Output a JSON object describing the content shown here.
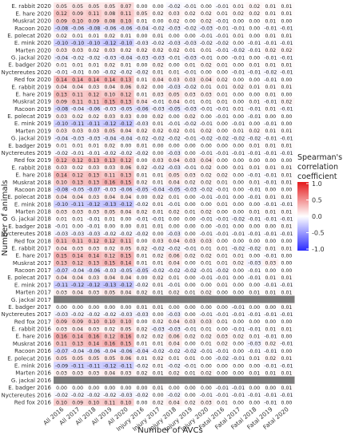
{
  "chart_data": {
    "type": "heatmap",
    "title": "",
    "xlabel": "Number of AVCs",
    "ylabel": "Number of animals",
    "legend": {
      "title": "Spearman's\ncorrelation\ncoefficient",
      "ticks": [
        "1.0",
        "0.5",
        "0.0",
        "-0.5",
        "-1.0"
      ],
      "low_color": "#2b2bff",
      "mid_color": "#ffffff",
      "high_color": "#e41a1c",
      "range": [
        -1,
        1
      ],
      "placement": "right"
    },
    "missing_color": "#7f7f7f",
    "x_categories": [
      "All 2016",
      "All 2017",
      "All 2018",
      "All 2019",
      "All 2020",
      "Injury 2016",
      "Injury 2017",
      "Injury 2018",
      "Injury 2019",
      "Injury 2020",
      "Fatal 2016",
      "Fatal 2017",
      "Fatal 2018",
      "Fatal 2019",
      "Fatal 2020"
    ],
    "y_categories": [
      "E. rabbit 2020",
      "E. hare 2020",
      "Muskrat 2020",
      "Racoon 2020",
      "E. polecat 2020",
      "E. mink 2020",
      "Marten 2020",
      "G. jackal 2020",
      "E. badger 2020",
      "Nyctereutes 2020",
      "Red fox 2020",
      "E. rabbit 2019",
      "E. hare 2019",
      "Muskrat 2019",
      "Racoon 2019",
      "E. polecat 2019",
      "E. mink 2019",
      "Marten 2019",
      "G. jackal 2019",
      "E. badger 2019",
      "Nyctereutes 2019",
      "Red fox 2019",
      "E. rabbit 2018",
      "E. hare 2018",
      "Muskrat 2018",
      "Racoon 2018",
      "E. polecat 2018",
      "E. mink 2018",
      "Marten 2018",
      "G. jackal 2018",
      "E. badger 2018",
      "Nyctereutes 2018",
      "Red fox 2018",
      "E. rabbit 2017",
      "E. hare 2017",
      "Muskrat 2017",
      "Racoon 2017",
      "E. polecat 2017",
      "E. mink 2017",
      "Marten 2017",
      "G. jackal 2017",
      "E. badger 2017",
      "Nyctereutes 2017",
      "Red fox 2017",
      "E. rabbit 2016",
      "E. hare 2016",
      "Muskrat 2016",
      "Racoon 2016",
      "E. polecat 2016",
      "E. mink 2016",
      "Marten 2016",
      "G. jackal 2016",
      "E. badger 2016",
      "Nyctereutes 2016",
      "Red fox 2016"
    ],
    "values": [
      [
        "0.05",
        "0.05",
        "0.05",
        "0.05",
        "0.07",
        "0.00",
        "0.00",
        "-0.02",
        "-0.01",
        "0.00",
        "-0.01",
        "0.01",
        "0.02",
        "0.01",
        "0.01"
      ],
      [
        "0.12",
        "0.09",
        "0.11",
        "0.08",
        "0.11",
        "0.05",
        "0.02",
        "0.03",
        "0.02",
        "0.02",
        "0.01",
        "0.02",
        "0.02",
        "0.01",
        "0.01"
      ],
      [
        "0.09",
        "0.10",
        "0.09",
        "0.08",
        "0.10",
        "0.01",
        "0.00",
        "0.02",
        "0.00",
        "0.02",
        "-0.01",
        "0.00",
        "0.00",
        "0.01",
        "0.00"
      ],
      [
        "-0.08",
        "-0.06",
        "-0.08",
        "-0.06",
        "-0.06",
        "-0.04",
        "-0.02",
        "-0.03",
        "-0.02",
        "-0.03",
        "-0.01",
        "-0.01",
        "0.00",
        "-0.01",
        "-0.01"
      ],
      [
        "0.02",
        "0.01",
        "0.01",
        "0.02",
        "0.01",
        "0.00",
        "0.01",
        "0.00",
        "0.00",
        "-0.01",
        "-0.01",
        "0.01",
        "0.00",
        "0.01",
        "0.01"
      ],
      [
        "-0.10",
        "-0.10",
        "-0.10",
        "-0.12",
        "-0.10",
        "-0.03",
        "-0.02",
        "-0.03",
        "-0.03",
        "-0.02",
        "-0.02",
        "0.00",
        "-0.01",
        "-0.01",
        "-0.01"
      ],
      [
        "0.03",
        "0.03",
        "0.02",
        "0.03",
        "0.02",
        "0.02",
        "0.02",
        "0.02",
        "0.01",
        "0.01",
        "-0.01",
        "-0.02",
        "-0.01",
        "0.02",
        "0.02"
      ],
      [
        "-0.04",
        "-0.02",
        "-0.02",
        "-0.03",
        "-0.04",
        "-0.03",
        "-0.03",
        "-0.01",
        "-0.03",
        "-0.01",
        "0.00",
        "-0.01",
        "0.00",
        "-0.01",
        "-0.01"
      ],
      [
        "0.01",
        "0.01",
        "0.01",
        "0.02",
        "0.01",
        "0.00",
        "0.02",
        "0.00",
        "0.01",
        "0.02",
        "0.01",
        "0.00",
        "0.01",
        "0.01",
        "0.01"
      ],
      [
        "-0.01",
        "-0.01",
        "0.00",
        "-0.02",
        "-0.02",
        "-0.02",
        "0.01",
        "0.01",
        "-0.01",
        "0.00",
        "0.00",
        "-0.01",
        "-0.01",
        "-0.02",
        "-0.01"
      ],
      [
        "0.14",
        "0.14",
        "0.14",
        "0.14",
        "0.13",
        "0.01",
        "0.04",
        "0.03",
        "0.03",
        "0.04",
        "0.02",
        "0.00",
        "0.00",
        "-0.01",
        "0.00"
      ],
      [
        "0.04",
        "0.04",
        "0.03",
        "0.04",
        "0.06",
        "0.02",
        "0.00",
        "-0.03",
        "-0.02",
        "0.01",
        "0.01",
        "0.02",
        "0.01",
        "0.01",
        "0.01"
      ],
      [
        "0.13",
        "0.11",
        "0.12",
        "0.10",
        "0.12",
        "0.01",
        "0.03",
        "0.05",
        "0.03",
        "0.03",
        "0.01",
        "0.00",
        "0.00",
        "0.01",
        "0.00"
      ],
      [
        "0.09",
        "0.11",
        "0.11",
        "0.15",
        "0.13",
        "0.04",
        "-0.01",
        "0.04",
        "0.01",
        "0.01",
        "0.01",
        "0.00",
        "0.01",
        "-0.01",
        "0.02"
      ],
      [
        "-0.08",
        "-0.04",
        "-0.06",
        "-0.03",
        "-0.05",
        "-0.06",
        "-0.03",
        "-0.05",
        "-0.03",
        "-0.01",
        "-0.01",
        "0.01",
        "-0.01",
        "0.01",
        "-0.01"
      ],
      [
        "0.03",
        "0.02",
        "0.02",
        "0.03",
        "0.03",
        "0.00",
        "0.02",
        "0.00",
        "0.02",
        "0.00",
        "-0.01",
        "0.00",
        "-0.01",
        "0.00",
        "0.00"
      ],
      [
        "-0.10",
        "-0.11",
        "-0.11",
        "-0.12",
        "-0.12",
        "-0.03",
        "0.01",
        "-0.01",
        "-0.02",
        "-0.01",
        "0.00",
        "-0.01",
        "0.00",
        "-0.01",
        "0.00"
      ],
      [
        "0.03",
        "0.03",
        "0.03",
        "0.05",
        "0.04",
        "0.02",
        "0.02",
        "0.02",
        "0.01",
        "0.02",
        "0.00",
        "0.01",
        "0.02",
        "0.01",
        "0.01"
      ],
      [
        "-0.04",
        "-0.03",
        "-0.03",
        "-0.04",
        "-0.04",
        "-0.02",
        "-0.02",
        "-0.02",
        "-0.01",
        "-0.02",
        "-0.02",
        "-0.02",
        "-0.02",
        "-0.01",
        "-0.01"
      ],
      [
        "0.01",
        "0.01",
        "0.01",
        "0.02",
        "0.00",
        "0.01",
        "0.00",
        "0.00",
        "0.00",
        "0.00",
        "0.00",
        "0.00",
        "0.01",
        "0.01",
        "0.01"
      ],
      [
        "-0.02",
        "-0.01",
        "-0.01",
        "-0.02",
        "-0.02",
        "-0.02",
        "0.00",
        "-0.03",
        "0.00",
        "-0.01",
        "-0.01",
        "-0.01",
        "-0.01",
        "-0.01",
        "-0.01"
      ],
      [
        "0.12",
        "0.12",
        "0.13",
        "0.13",
        "0.12",
        "0.00",
        "0.03",
        "0.04",
        "0.03",
        "0.04",
        "0.00",
        "0.00",
        "0.00",
        "0.00",
        "0.00"
      ],
      [
        "0.03",
        "0.02",
        "0.03",
        "0.03",
        "0.06",
        "0.02",
        "-0.02",
        "-0.03",
        "-0.01",
        "0.02",
        "0.00",
        "0.01",
        "0.01",
        "0.01",
        "0.01"
      ],
      [
        "0.14",
        "0.12",
        "0.13",
        "0.11",
        "0.13",
        "0.01",
        "0.01",
        "0.05",
        "0.03",
        "0.02",
        "0.02",
        "0.00",
        "-0.01",
        "-0.01",
        "0.01"
      ],
      [
        "0.10",
        "0.13",
        "0.13",
        "0.16",
        "0.15",
        "0.02",
        "0.01",
        "0.04",
        "0.02",
        "0.02",
        "0.01",
        "0.00",
        "0.01",
        "-0.01",
        "0.01"
      ],
      [
        "-0.08",
        "-0.05",
        "-0.07",
        "-0.03",
        "-0.06",
        "-0.05",
        "-0.04",
        "-0.05",
        "-0.03",
        "-0.02",
        "-0.01",
        "0.00",
        "-0.01",
        "0.00",
        "0.00"
      ],
      [
        "0.04",
        "0.04",
        "0.03",
        "0.04",
        "0.04",
        "0.00",
        "0.02",
        "0.01",
        "0.00",
        "-0.01",
        "-0.01",
        "0.00",
        "-0.01",
        "0.01",
        "0.01"
      ],
      [
        "-0.10",
        "-0.11",
        "-0.12",
        "-0.13",
        "-0.12",
        "-0.02",
        "0.01",
        "-0.01",
        "0.00",
        "0.00",
        "0.01",
        "0.00",
        "0.00",
        "-0.01",
        "-0.01"
      ],
      [
        "0.03",
        "0.03",
        "0.03",
        "0.05",
        "0.04",
        "0.02",
        "0.01",
        "0.02",
        "0.01",
        "0.02",
        "0.00",
        "0.00",
        "0.01",
        "0.01",
        "0.01"
      ],
      [
        "0.01",
        "0.01",
        "-0.01",
        "0.01",
        "0.00",
        "-0.01",
        "-0.01",
        "0.00",
        "0.00",
        "-0.01",
        "-0.01",
        "-0.02",
        "-0.01",
        "-0.01",
        "-0.01"
      ],
      [
        "-0.01",
        "0.00",
        "-0.01",
        "0.00",
        "0.00",
        "0.01",
        "0.01",
        "0.00",
        "0.00",
        "0.00",
        "-0.01",
        "0.00",
        "0.00",
        "0.00",
        "0.01"
      ],
      [
        "-0.03",
        "-0.03",
        "-0.03",
        "-0.02",
        "-0.02",
        "-0.02",
        "0.00",
        "-0.03",
        "0.00",
        "-0.01",
        "-0.01",
        "-0.01",
        "-0.01",
        "-0.01",
        "-0.01"
      ],
      [
        "0.11",
        "0.11",
        "0.12",
        "0.12",
        "0.11",
        "0.00",
        "0.03",
        "0.04",
        "0.03",
        "0.03",
        "0.00",
        "0.00",
        "0.00",
        "0.00",
        "0.00"
      ],
      [
        "0.04",
        "0.03",
        "0.03",
        "0.02",
        "0.05",
        "0.02",
        "-0.02",
        "-0.02",
        "-0.01",
        "0.01",
        "0.01",
        "-0.02",
        "-0.02",
        "0.01",
        "0.01"
      ],
      [
        "0.15",
        "0.14",
        "0.14",
        "0.12",
        "0.15",
        "0.01",
        "0.02",
        "0.06",
        "0.02",
        "0.02",
        "0.01",
        "0.01",
        "0.00",
        "-0.01",
        "0.00"
      ],
      [
        "0.13",
        "0.12",
        "0.13",
        "0.15",
        "0.14",
        "0.01",
        "0.01",
        "0.04",
        "0.00",
        "0.01",
        "0.01",
        "0.02",
        "-0.03",
        "0.03",
        "0.00"
      ],
      [
        "-0.07",
        "-0.04",
        "-0.06",
        "-0.03",
        "-0.05",
        "-0.05",
        "-0.02",
        "-0.02",
        "-0.02",
        "-0.01",
        "-0.02",
        "0.00",
        "-0.01",
        "0.00",
        "0.00"
      ],
      [
        "0.04",
        "0.04",
        "0.03",
        "0.04",
        "0.04",
        "0.00",
        "0.02",
        "0.01",
        "0.00",
        "-0.01",
        "-0.01",
        "0.00",
        "-0.01",
        "0.01",
        "0.01"
      ],
      [
        "-0.11",
        "-0.12",
        "-0.12",
        "-0.13",
        "-0.12",
        "-0.02",
        "0.01",
        "-0.01",
        "0.00",
        "0.00",
        "0.01",
        "0.00",
        "0.00",
        "-0.01",
        "-0.01"
      ],
      [
        "0.03",
        "0.04",
        "0.03",
        "0.05",
        "0.04",
        "0.02",
        "0.01",
        "0.02",
        "0.01",
        "0.02",
        "0.00",
        "0.00",
        "0.01",
        "0.01",
        "0.01"
      ],
      [
        null,
        null,
        null,
        null,
        null,
        null,
        null,
        null,
        null,
        null,
        null,
        null,
        null,
        null,
        null
      ],
      [
        "0.00",
        "0.00",
        "0.00",
        "0.00",
        "0.00",
        "0.01",
        "0.01",
        "0.00",
        "0.00",
        "0.00",
        "0.00",
        "-0.01",
        "0.00",
        "0.00",
        "0.01"
      ],
      [
        "-0.03",
        "-0.02",
        "-0.02",
        "-0.02",
        "-0.03",
        "-0.03",
        "0.00",
        "-0.03",
        "0.00",
        "-0.01",
        "-0.01",
        "-0.01",
        "-0.01",
        "-0.01",
        "-0.01"
      ],
      [
        "0.09",
        "0.09",
        "0.10",
        "0.10",
        "0.10",
        "0.00",
        "0.02",
        "0.04",
        "0.03",
        "0.03",
        "0.01",
        "0.00",
        "0.00",
        "0.00",
        "0.00"
      ],
      [
        "0.03",
        "0.04",
        "0.03",
        "0.02",
        "0.05",
        "0.02",
        "-0.03",
        "-0.03",
        "-0.01",
        "0.01",
        "0.00",
        "-0.01",
        "-0.01",
        "0.01",
        "0.01"
      ],
      [
        "0.16",
        "0.14",
        "0.16",
        "0.12",
        "0.16",
        "0.02",
        "0.02",
        "0.06",
        "0.02",
        "0.02",
        "0.03",
        "0.02",
        "0.01",
        "-0.01",
        "0.00"
      ],
      [
        "0.11",
        "0.13",
        "0.14",
        "0.16",
        "0.15",
        "0.01",
        "0.01",
        "0.04",
        "0.00",
        "0.01",
        "0.02",
        "0.00",
        "-0.03",
        "0.02",
        "-0.01"
      ],
      [
        "-0.07",
        "-0.04",
        "-0.06",
        "-0.04",
        "-0.06",
        "-0.04",
        "-0.02",
        "-0.02",
        "-0.02",
        "-0.01",
        "-0.01",
        "0.00",
        "-0.01",
        "-0.01",
        "0.00"
      ],
      [
        "0.05",
        "0.05",
        "0.05",
        "0.05",
        "0.06",
        "0.01",
        "0.02",
        "0.01",
        "0.01",
        "0.00",
        "-0.02",
        "-0.01",
        "0.01",
        "0.02",
        "0.01"
      ],
      [
        "-0.09",
        "-0.11",
        "-0.11",
        "-0.12",
        "-0.11",
        "-0.02",
        "0.01",
        "-0.02",
        "-0.01",
        "0.00",
        "0.00",
        "0.00",
        "0.00",
        "-0.01",
        "-0.01"
      ],
      [
        "0.03",
        "0.03",
        "0.03",
        "0.04",
        "0.03",
        "0.02",
        "0.01",
        "0.02",
        "0.01",
        "0.02",
        "0.00",
        "0.00",
        "0.01",
        "0.01",
        "0.01"
      ],
      [
        null,
        null,
        null,
        null,
        null,
        null,
        null,
        null,
        null,
        null,
        null,
        null,
        null,
        null,
        null
      ],
      [
        "0.00",
        "0.00",
        "0.00",
        "0.00",
        "0.00",
        "0.00",
        "0.01",
        "0.00",
        "0.00",
        "0.00",
        "-0.01",
        "-0.01",
        "0.00",
        "0.00",
        "0.01"
      ],
      [
        "-0.02",
        "-0.02",
        "-0.02",
        "-0.02",
        "-0.03",
        "-0.02",
        "0.00",
        "-0.02",
        "0.00",
        "-0.01",
        "-0.01",
        "-0.01",
        "-0.01",
        "-0.01",
        "-0.01"
      ],
      [
        "0.10",
        "0.09",
        "0.10",
        "0.11",
        "0.10",
        "0.00",
        "0.02",
        "0.04",
        "0.02",
        "0.03",
        "0.01",
        "0.00",
        "0.00",
        "-0.01",
        "0.00"
      ]
    ]
  }
}
